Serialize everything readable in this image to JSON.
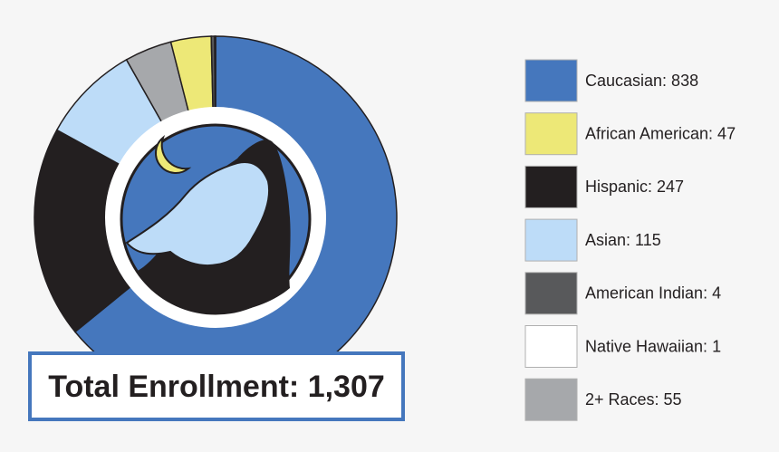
{
  "chart_data": {
    "type": "donut",
    "categories": [
      "Caucasian: 838",
      "African American: 47",
      "Hispanic: 247",
      "Asian: 115",
      "American Indian: 4",
      "Native Hawaiian: 1",
      "2+ Races: 55"
    ],
    "values": [
      838,
      47,
      247,
      115,
      4,
      1,
      55
    ],
    "colors": [
      "#4577bd",
      "#ede877",
      "#231f20",
      "#bddcf8",
      "#58595b",
      "#ffffff",
      "#a6a8ab"
    ],
    "annotation": "Total Enrollment: 1,307"
  }
}
